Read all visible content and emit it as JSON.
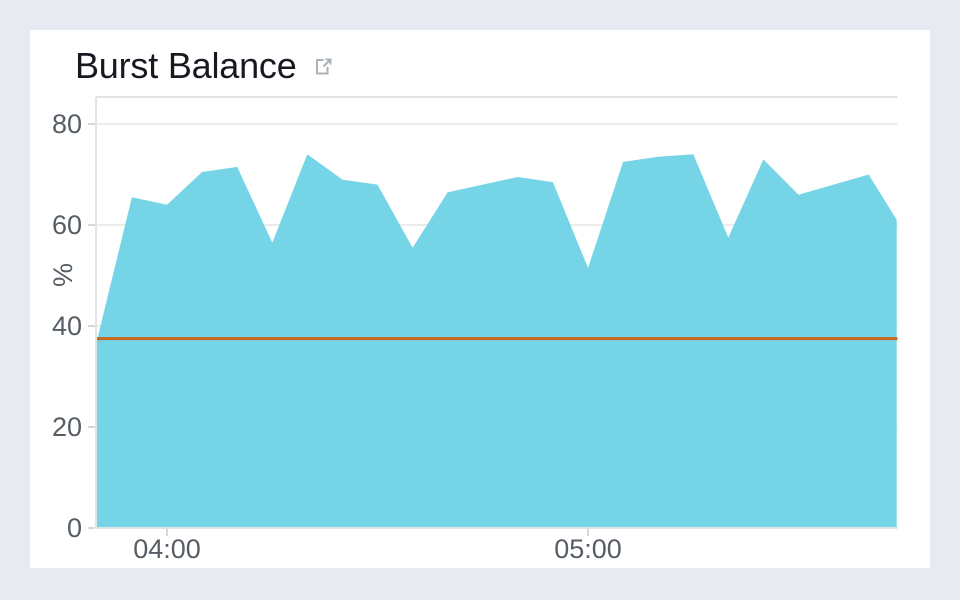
{
  "widget": {
    "title": "Burst Balance"
  },
  "colors": {
    "page_background": "#e8eaf2",
    "card_background": "#ffffff",
    "title_text": "#16191f",
    "axis_label": "#565d64",
    "gridline": "#ececec",
    "plot_border": "#e0e3e3",
    "axis_line": "#e2e5e5",
    "tick": "#d5d9d9",
    "area_fill": "#69d1e4",
    "threshold": "#c9671c",
    "external_link_icon": "#a9b4ba"
  },
  "chart_data": {
    "type": "area",
    "title": "Burst Balance",
    "xlabel": "",
    "ylabel": "%",
    "ylim": [
      0,
      80
    ],
    "yticks": [
      0,
      20,
      40,
      60,
      80
    ],
    "xticks": [
      "04:00",
      "05:00"
    ],
    "x_range": [
      "03:50",
      "05:44"
    ],
    "grid": true,
    "legend": "none",
    "series": [
      {
        "name": "BurstBalance",
        "color": "#69d1e4",
        "x": [
          "03:50",
          "03:55",
          "04:00",
          "04:05",
          "04:10",
          "04:15",
          "04:20",
          "04:25",
          "04:30",
          "04:35",
          "04:40",
          "04:45",
          "04:50",
          "04:55",
          "05:00",
          "05:05",
          "05:10",
          "05:15",
          "05:20",
          "05:25",
          "05:30",
          "05:35",
          "05:40",
          "05:44"
        ],
        "values": [
          37,
          65.5,
          64,
          70.5,
          71.5,
          56.5,
          74,
          69,
          68,
          55.5,
          66.5,
          68,
          69.5,
          68.5,
          51.5,
          72.5,
          73.5,
          74,
          57.5,
          73,
          66,
          68,
          70,
          61
        ]
      }
    ],
    "annotations": [
      {
        "type": "hline",
        "value": 37.5,
        "color": "#c9671c",
        "label": ""
      }
    ]
  }
}
